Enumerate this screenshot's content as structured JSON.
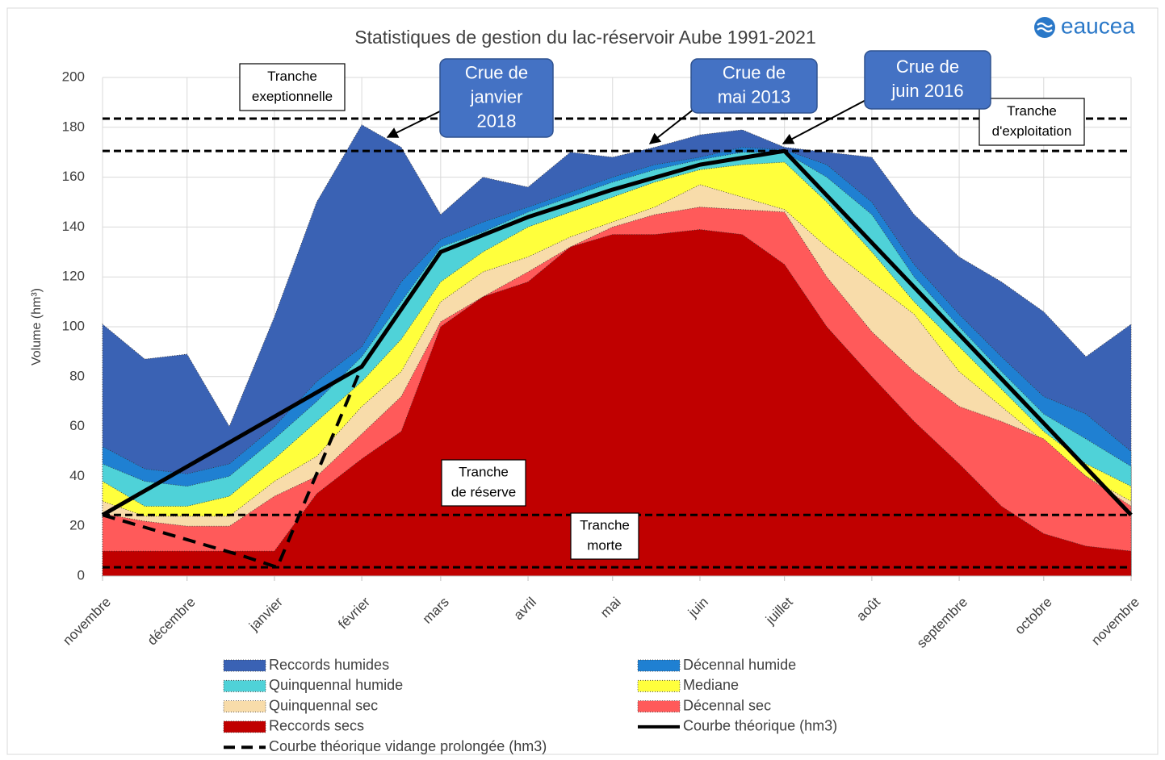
{
  "logo": "eaucea",
  "chart_data": {
    "type": "area",
    "title": "Statistiques de gestion du lac-réservoir Aube 1991-2021",
    "y_label": "Volume (hm³)",
    "x": [
      0,
      15,
      30,
      45,
      61,
      76,
      92,
      106,
      120,
      135,
      151,
      166,
      181,
      196,
      212,
      227,
      242,
      257,
      273,
      288,
      304,
      319,
      334,
      349,
      365
    ],
    "xlim": [
      0,
      365
    ],
    "xticks": [
      {
        "value": 0,
        "label": "novembre"
      },
      {
        "value": 30,
        "label": "décembre"
      },
      {
        "value": 61,
        "label": "janvier"
      },
      {
        "value": 92,
        "label": "février"
      },
      {
        "value": 120,
        "label": "mars"
      },
      {
        "value": 151,
        "label": "avril"
      },
      {
        "value": 181,
        "label": "mai"
      },
      {
        "value": 212,
        "label": "juin"
      },
      {
        "value": 242,
        "label": "juillet"
      },
      {
        "value": 273,
        "label": "août"
      },
      {
        "value": 304,
        "label": "septembre"
      },
      {
        "value": 334,
        "label": "octobre"
      },
      {
        "value": 365,
        "label": "novembre"
      }
    ],
    "ylim": [
      0,
      200
    ],
    "yticks": [
      0,
      20,
      40,
      60,
      80,
      100,
      120,
      140,
      160,
      180,
      200
    ],
    "grid": true,
    "series": [
      {
        "name": "Reccords humides",
        "color": "#3a62b4",
        "values": [
          101,
          87,
          89,
          60,
          104,
          150,
          181,
          172,
          145,
          160,
          156,
          170,
          168,
          172,
          177,
          179,
          172,
          170,
          168,
          145,
          128,
          118,
          106,
          88,
          101
        ]
      },
      {
        "name": "Décennal humide",
        "color": "#1f80d2",
        "values": [
          52,
          43,
          41,
          45,
          60,
          78,
          92,
          118,
          135,
          142,
          148,
          154,
          160,
          165,
          168,
          172,
          171,
          165,
          150,
          125,
          105,
          88,
          72,
          65,
          50
        ]
      },
      {
        "name": "Quinquennal humide",
        "color": "#4fd2d8",
        "values": [
          45,
          38,
          36,
          40,
          55,
          70,
          88,
          110,
          132,
          138,
          146,
          152,
          158,
          163,
          167,
          170,
          170,
          160,
          145,
          120,
          100,
          82,
          65,
          55,
          44
        ]
      },
      {
        "name": "Mediane",
        "color": "#ffff3c",
        "values": [
          38,
          28,
          28,
          32,
          47,
          62,
          78,
          95,
          118,
          130,
          140,
          146,
          152,
          158,
          163,
          165,
          166,
          150,
          130,
          110,
          92,
          75,
          58,
          45,
          36
        ]
      },
      {
        "name": "Quinquennal sec",
        "color": "#f8dcaa",
        "values": [
          30,
          24,
          24,
          24,
          38,
          48,
          68,
          82,
          110,
          122,
          128,
          136,
          142,
          148,
          157,
          152,
          147,
          132,
          118,
          105,
          82,
          68,
          54,
          40,
          30
        ]
      },
      {
        "name": "Décennal sec",
        "color": "#ff5a5a",
        "values": [
          25,
          22,
          20,
          20,
          32,
          40,
          57,
          72,
          102,
          112,
          122,
          132,
          140,
          145,
          148,
          147,
          146,
          120,
          98,
          82,
          68,
          62,
          55,
          40,
          28
        ]
      },
      {
        "name": "Reccords secs",
        "color": "#c00000",
        "values": [
          10,
          10,
          10,
          10,
          10,
          33,
          47,
          58,
          100,
          112,
          118,
          132,
          137,
          137,
          139,
          137,
          125,
          100,
          80,
          62,
          45,
          28,
          17,
          12,
          10
        ]
      },
      {
        "name": "Courbe théorique (hm3)",
        "color": "#000000",
        "style": "line",
        "x": [
          0,
          92,
          120,
          151,
          181,
          212,
          242,
          365
        ],
        "values": [
          24.5,
          84,
          130,
          144,
          155,
          165,
          170.5,
          24.5
        ]
      },
      {
        "name": "Courbe théorique vidange prolongée (hm3)",
        "color": "#000000",
        "style": "dashed",
        "x": [
          0,
          50,
          62,
          92
        ],
        "values": [
          24.5,
          8,
          3.5,
          84
        ]
      }
    ],
    "reference_lines": [
      183.5,
      170.5,
      24.5,
      3.5
    ],
    "zones": [
      [
        "Tranche",
        "exeptionnelle"
      ],
      [
        "Tranche",
        "d'exploitation"
      ],
      [
        "Tranche",
        "de réserve"
      ],
      [
        "Tranche",
        "morte"
      ]
    ],
    "annotations": [
      [
        "Crue de",
        "janvier",
        "2018"
      ],
      [
        "Crue de",
        "mai 2013"
      ],
      [
        "Crue de",
        "juin 2016"
      ]
    ]
  }
}
